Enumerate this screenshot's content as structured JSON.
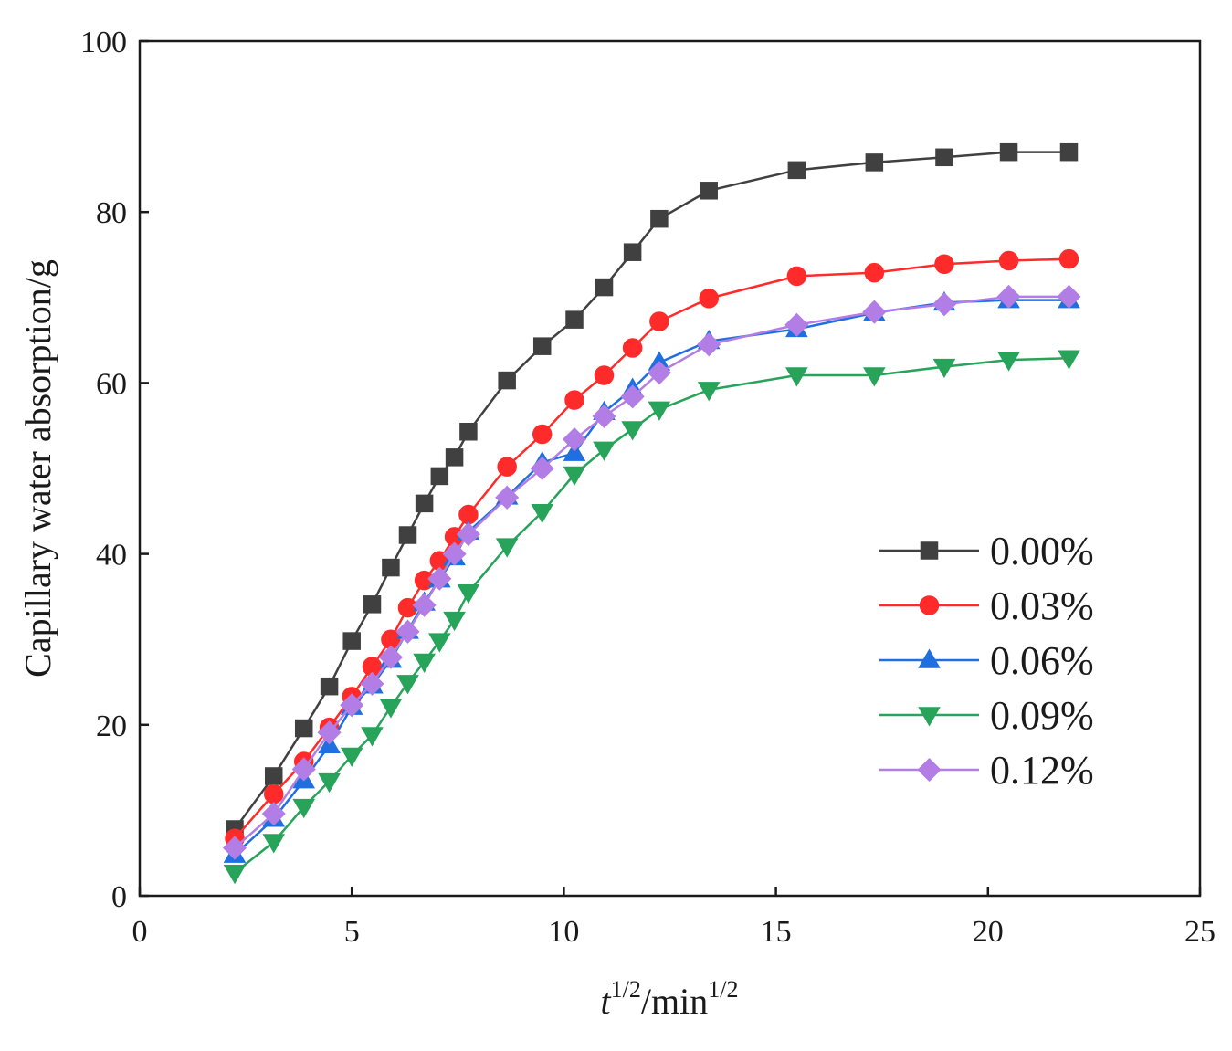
{
  "chart_data": {
    "type": "line",
    "title": "",
    "xlabel": {
      "base": "t",
      "sup1": "1/2",
      "unit": "/min",
      "sup2": "1/2"
    },
    "ylabel": "Capillary water absorption/g",
    "xlim": [
      0,
      25
    ],
    "ylim": [
      0,
      100
    ],
    "x_ticks": [
      0,
      5,
      10,
      15,
      20,
      25
    ],
    "y_ticks": [
      0,
      20,
      40,
      60,
      80,
      100
    ],
    "grid": false,
    "legend_position": "right-middle",
    "x": [
      2.24,
      3.16,
      3.87,
      4.47,
      5.0,
      5.48,
      5.92,
      6.32,
      6.71,
      7.07,
      7.42,
      7.75,
      8.66,
      9.49,
      10.25,
      10.95,
      11.62,
      12.25,
      13.42,
      15.49,
      17.32,
      18.97,
      20.49,
      21.91
    ],
    "series": [
      {
        "name": "0.00%",
        "color": "#404040",
        "marker": "square",
        "values": [
          7.8,
          14.0,
          19.6,
          24.5,
          29.8,
          34.1,
          38.4,
          42.2,
          45.9,
          49.1,
          51.3,
          54.3,
          60.3,
          64.3,
          67.4,
          71.2,
          75.3,
          79.2,
          82.5,
          84.9,
          85.8,
          86.4,
          87.0,
          87.0
        ]
      },
      {
        "name": "0.03%",
        "color": "#ff2b2b",
        "marker": "circle",
        "values": [
          6.7,
          11.9,
          15.7,
          19.7,
          23.3,
          26.8,
          30.0,
          33.7,
          36.9,
          39.2,
          42.0,
          44.6,
          50.2,
          54.0,
          58.0,
          60.9,
          64.1,
          67.2,
          69.9,
          72.5,
          72.9,
          73.9,
          74.3,
          74.5
        ]
      },
      {
        "name": "0.06%",
        "color": "#1f6fe0",
        "marker": "triangle-up",
        "values": [
          4.8,
          9.0,
          13.5,
          17.6,
          22.1,
          24.6,
          27.6,
          31.0,
          34.3,
          37.0,
          39.6,
          42.6,
          46.7,
          50.7,
          51.8,
          56.6,
          59.3,
          62.4,
          64.9,
          66.3,
          68.2,
          69.4,
          69.7,
          69.7
        ]
      },
      {
        "name": "0.09%",
        "color": "#27a35a",
        "marker": "triangle-down",
        "values": [
          2.7,
          6.3,
          10.4,
          13.4,
          16.4,
          18.8,
          22.1,
          24.9,
          27.4,
          29.8,
          32.3,
          35.5,
          40.9,
          44.9,
          49.3,
          52.2,
          54.6,
          56.9,
          59.2,
          60.9,
          60.9,
          61.9,
          62.7,
          62.9
        ]
      },
      {
        "name": "0.12%",
        "color": "#b27ee6",
        "marker": "diamond",
        "values": [
          5.6,
          9.6,
          14.8,
          19.1,
          22.3,
          24.8,
          27.9,
          30.9,
          34.0,
          37.1,
          40.0,
          42.3,
          46.6,
          50.0,
          53.4,
          56.1,
          58.4,
          61.2,
          64.5,
          66.8,
          68.3,
          69.2,
          70.1,
          70.1
        ]
      }
    ]
  }
}
